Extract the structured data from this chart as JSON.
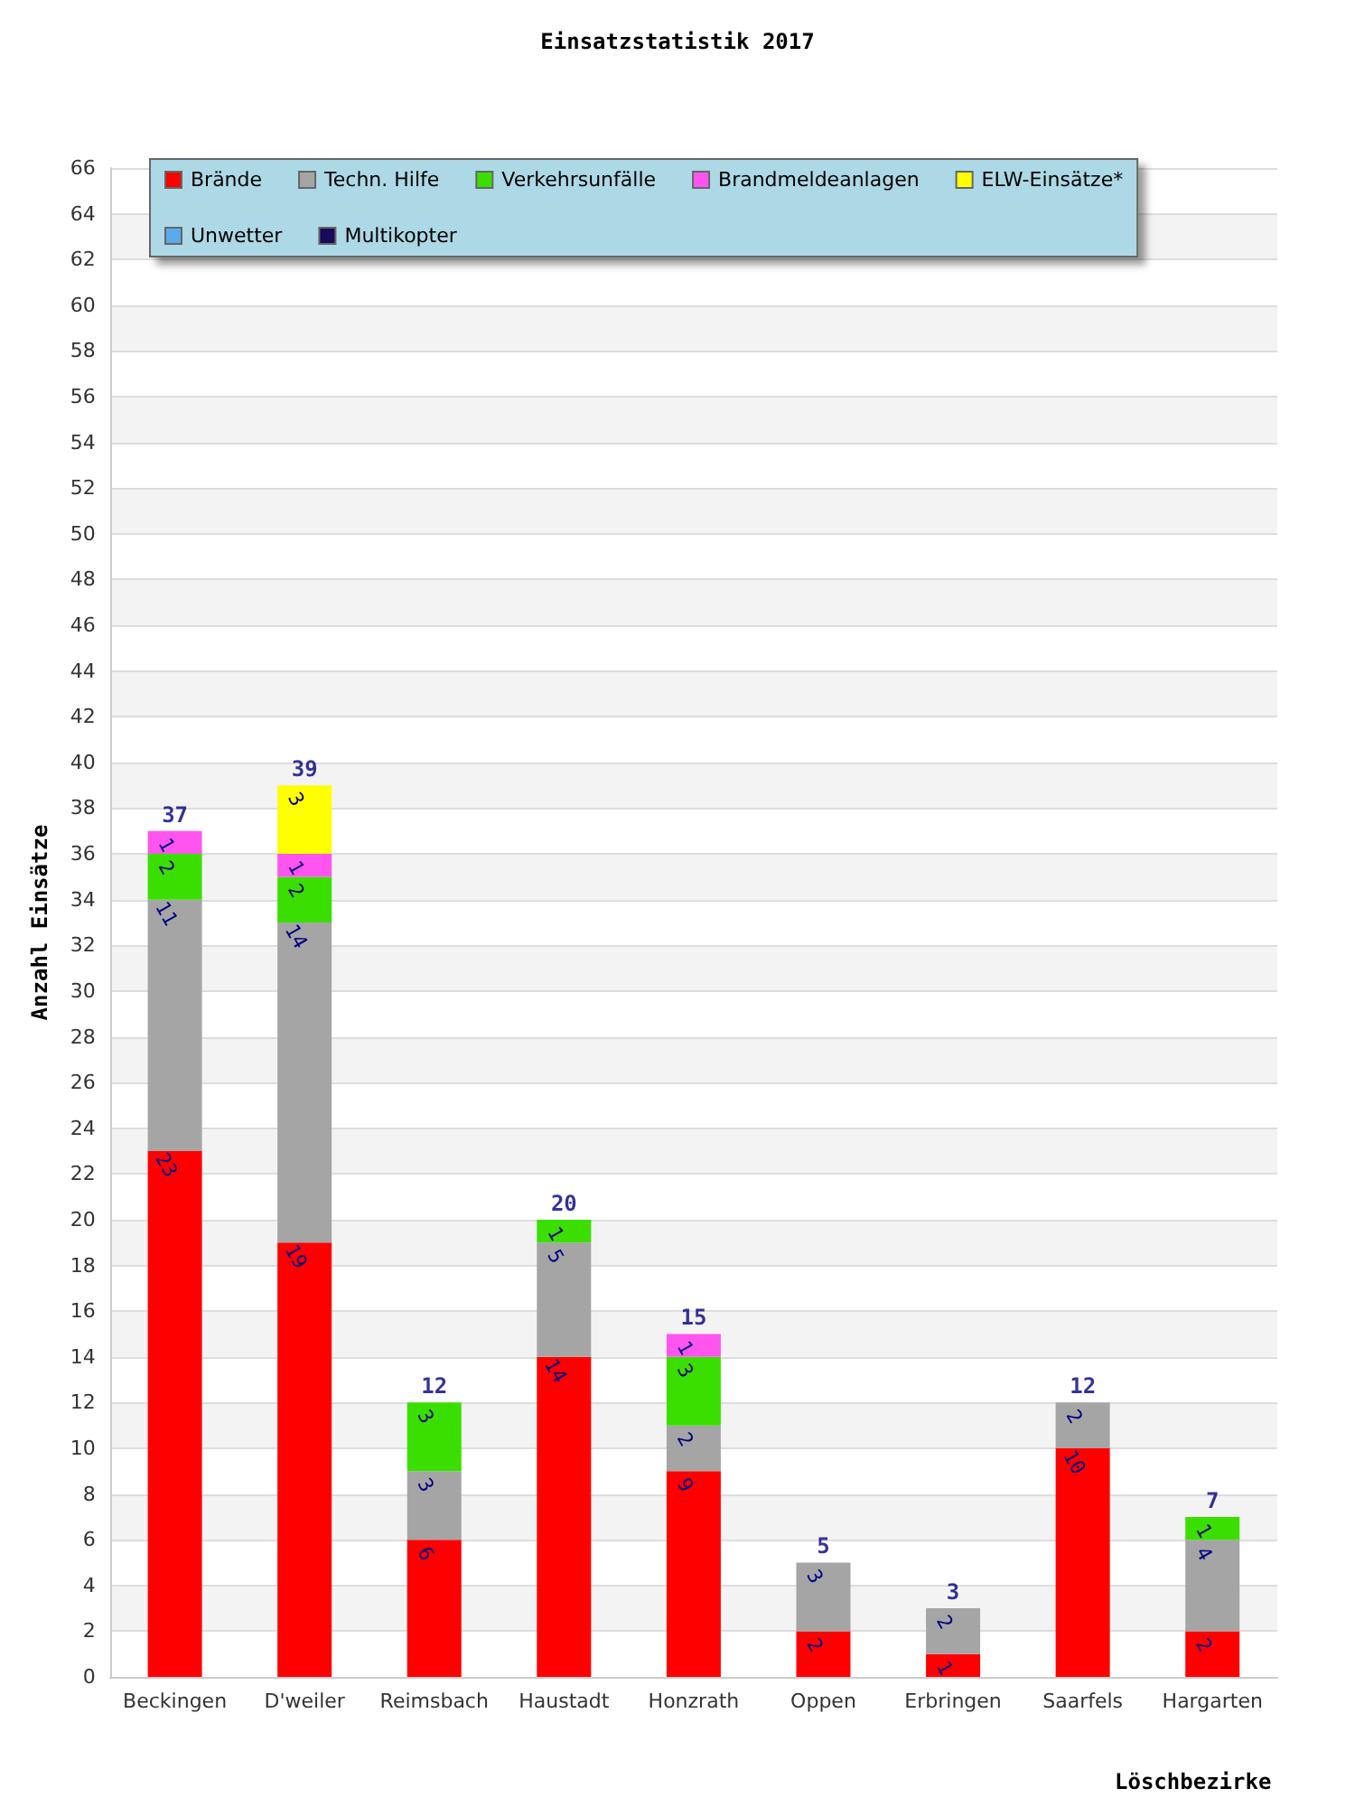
{
  "chart_data": {
    "type": "bar",
    "title": "Einsatzstatistik 2017",
    "xlabel": "Löschbezirke",
    "ylabel": "Anzahl Einsätze",
    "categories": [
      "Beckingen",
      "D'weiler",
      "Reimsbach",
      "Haustadt",
      "Honzrath",
      "Oppen",
      "Erbringen",
      "Saarfels",
      "Hargarten"
    ],
    "stacked": true,
    "data_labels": true,
    "grid": "y",
    "legend": "top left",
    "ylim": [
      0,
      66
    ],
    "yticks": [
      0,
      2,
      4,
      6,
      8,
      10,
      12,
      14,
      16,
      18,
      20,
      22,
      24,
      26,
      28,
      30,
      32,
      34,
      36,
      38,
      40,
      42,
      44,
      46,
      48,
      50,
      52,
      54,
      56,
      58,
      60,
      62,
      64,
      66
    ],
    "totals": [
      "37",
      "39",
      "12",
      "20",
      "15",
      "5",
      "3",
      "12",
      "7"
    ],
    "series": [
      {
        "name": "Brände",
        "color": "#ff0000",
        "values": [
          23,
          19,
          6,
          14,
          9,
          2,
          1,
          10,
          2
        ]
      },
      {
        "name": "Techn. Hilfe",
        "color": "#a5a5a5",
        "values": [
          11,
          14,
          3,
          5,
          2,
          3,
          2,
          2,
          4
        ]
      },
      {
        "name": "Verkehrsunfälle",
        "color": "#3adf00",
        "values": [
          2,
          2,
          3,
          1,
          3,
          null,
          null,
          null,
          1
        ]
      },
      {
        "name": "Brandmeldeanlagen",
        "color": "#ff55ee",
        "values": [
          1,
          1,
          null,
          null,
          1,
          null,
          null,
          null,
          null
        ]
      },
      {
        "name": "ELW-Einsätze*",
        "color": "#ffff00",
        "values": [
          null,
          3,
          null,
          null,
          null,
          null,
          null,
          null,
          null
        ]
      },
      {
        "name": "Unwetter",
        "color": "#5aaaee",
        "values": [
          null,
          null,
          null,
          null,
          null,
          null,
          null,
          null,
          null
        ]
      },
      {
        "name": "Multikopter",
        "color": "#1a0a5a",
        "values": [
          null,
          null,
          null,
          null,
          null,
          null,
          null,
          null,
          null
        ]
      }
    ]
  }
}
